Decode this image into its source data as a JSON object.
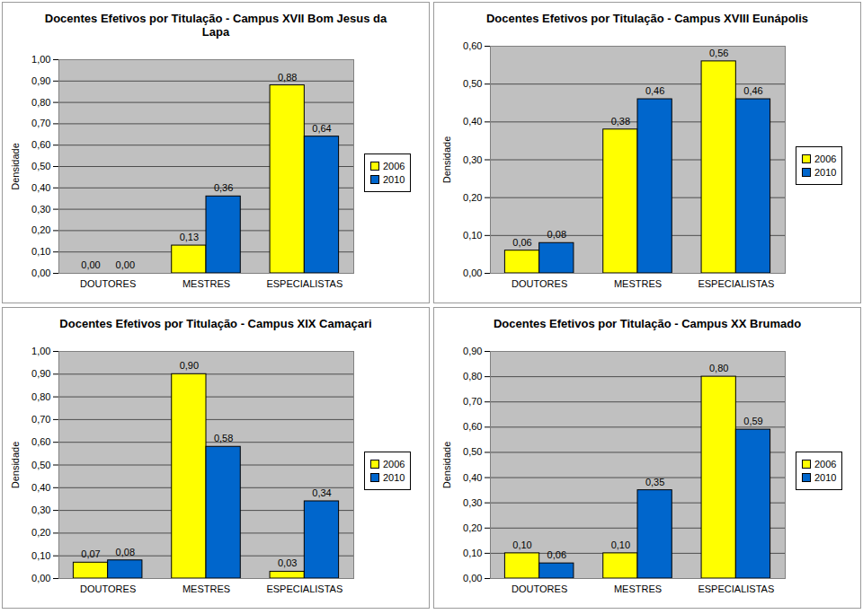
{
  "chart_data": [
    {
      "type": "bar",
      "title": "Docentes Efetivos por Titulação - Campus XVII Bom Jesus da Lapa",
      "y_label": "Densidade",
      "categories": [
        "DOUTORES",
        "MESTRES",
        "ESPECIALISTAS"
      ],
      "series": [
        {
          "name": "2006",
          "color": "#ffff00",
          "values": [
            0.0,
            0.13,
            0.88
          ],
          "value_labels": [
            "0,00",
            "0,13",
            "0,88"
          ]
        },
        {
          "name": "2010",
          "color": "#0066cc",
          "values": [
            0.0,
            0.36,
            0.64
          ],
          "value_labels": [
            "0,00",
            "0,36",
            "0,64"
          ]
        }
      ],
      "ylim": [
        0,
        1
      ],
      "yticks": [
        {
          "value": 0,
          "label": "0,00"
        },
        {
          "value": 0.1,
          "label": "0,10"
        },
        {
          "value": 0.2,
          "label": "0,20"
        },
        {
          "value": 0.3,
          "label": "0,30"
        },
        {
          "value": 0.4,
          "label": "0,40"
        },
        {
          "value": 0.5,
          "label": "0,50"
        },
        {
          "value": 0.6,
          "label": "0,60"
        },
        {
          "value": 0.7,
          "label": "0,70"
        },
        {
          "value": 0.8,
          "label": "0,80"
        },
        {
          "value": 0.9,
          "label": "0,90"
        },
        {
          "value": 1,
          "label": "1,00"
        }
      ],
      "grid": true,
      "legend": "right",
      "data_labels": true
    },
    {
      "type": "bar",
      "title": "Docentes Efetivos por Titulação - Campus XVIII Eunápolis",
      "y_label": "Densidade",
      "categories": [
        "DOUTORES",
        "MESTRES",
        "ESPECIALISTAS"
      ],
      "series": [
        {
          "name": "2006",
          "color": "#ffff00",
          "values": [
            0.06,
            0.38,
            0.56
          ],
          "value_labels": [
            "0,06",
            "0,38",
            "0,56"
          ]
        },
        {
          "name": "2010",
          "color": "#0066cc",
          "values": [
            0.08,
            0.46,
            0.46
          ],
          "value_labels": [
            "0,08",
            "0,46",
            "0,46"
          ]
        }
      ],
      "ylim": [
        0,
        0.6
      ],
      "yticks": [
        {
          "value": 0,
          "label": "0,00"
        },
        {
          "value": 0.1,
          "label": "0,10"
        },
        {
          "value": 0.2,
          "label": "0,20"
        },
        {
          "value": 0.3,
          "label": "0,30"
        },
        {
          "value": 0.4,
          "label": "0,40"
        },
        {
          "value": 0.5,
          "label": "0,50"
        },
        {
          "value": 0.6,
          "label": "0,60"
        }
      ],
      "grid": true,
      "legend": "right",
      "data_labels": true
    },
    {
      "type": "bar",
      "title": "Docentes Efetivos por Titulação - Campus XIX Camaçari",
      "y_label": "Densidade",
      "categories": [
        "DOUTORES",
        "MESTRES",
        "ESPECIALISTAS"
      ],
      "series": [
        {
          "name": "2006",
          "color": "#ffff00",
          "values": [
            0.07,
            0.9,
            0.03
          ],
          "value_labels": [
            "0,07",
            "0,90",
            "0,03"
          ]
        },
        {
          "name": "2010",
          "color": "#0066cc",
          "values": [
            0.08,
            0.58,
            0.34
          ],
          "value_labels": [
            "0,08",
            "0,58",
            "0,34"
          ]
        }
      ],
      "ylim": [
        0,
        1
      ],
      "yticks": [
        {
          "value": 0,
          "label": "0,00"
        },
        {
          "value": 0.1,
          "label": "0,10"
        },
        {
          "value": 0.2,
          "label": "0,20"
        },
        {
          "value": 0.3,
          "label": "0,30"
        },
        {
          "value": 0.4,
          "label": "0,40"
        },
        {
          "value": 0.5,
          "label": "0,50"
        },
        {
          "value": 0.6,
          "label": "0,60"
        },
        {
          "value": 0.7,
          "label": "0,70"
        },
        {
          "value": 0.8,
          "label": "0,80"
        },
        {
          "value": 0.9,
          "label": "0,90"
        },
        {
          "value": 1,
          "label": "1,00"
        }
      ],
      "grid": true,
      "legend": "right",
      "data_labels": true
    },
    {
      "type": "bar",
      "title": "Docentes Efetivos por Titulação - Campus XX Brumado",
      "y_label": "Densidade",
      "categories": [
        "DOUTORES",
        "MESTRES",
        "ESPECIALISTAS"
      ],
      "series": [
        {
          "name": "2006",
          "color": "#ffff00",
          "values": [
            0.1,
            0.1,
            0.8
          ],
          "value_labels": [
            "0,10",
            "0,10",
            "0,80"
          ]
        },
        {
          "name": "2010",
          "color": "#0066cc",
          "values": [
            0.06,
            0.35,
            0.59
          ],
          "value_labels": [
            "0,06",
            "0,35",
            "0,59"
          ]
        }
      ],
      "ylim": [
        0,
        0.9
      ],
      "yticks": [
        {
          "value": 0,
          "label": "0,00"
        },
        {
          "value": 0.1,
          "label": "0,10"
        },
        {
          "value": 0.2,
          "label": "0,20"
        },
        {
          "value": 0.3,
          "label": "0,30"
        },
        {
          "value": 0.4,
          "label": "0,40"
        },
        {
          "value": 0.5,
          "label": "0,50"
        },
        {
          "value": 0.6,
          "label": "0,60"
        },
        {
          "value": 0.7,
          "label": "0,70"
        },
        {
          "value": 0.8,
          "label": "0,80"
        },
        {
          "value": 0.9,
          "label": "0,90"
        }
      ],
      "grid": true,
      "legend": "right",
      "data_labels": true
    }
  ]
}
